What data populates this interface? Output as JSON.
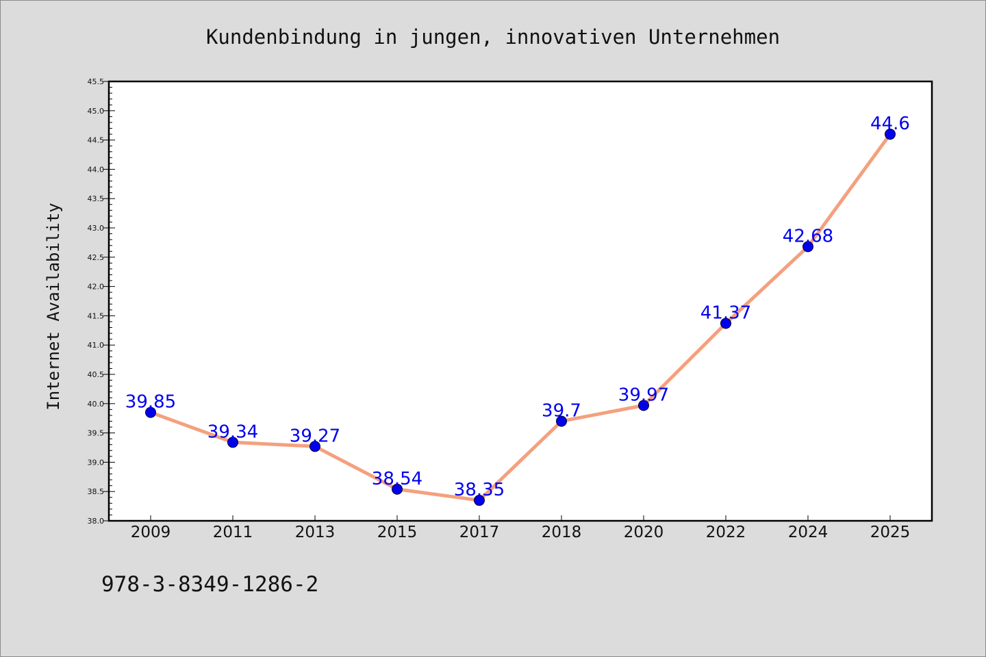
{
  "chart_data": {
    "type": "line",
    "title": "Kundenbindung in jungen, innovativen Unternehmen",
    "xlabel": "",
    "ylabel": "Internet Availability",
    "categories": [
      "2009",
      "2011",
      "2013",
      "2015",
      "2017",
      "2018",
      "2020",
      "2022",
      "2024",
      "2025"
    ],
    "series": [
      {
        "values": [
          39.85,
          39.34,
          39.27,
          38.54,
          38.35,
          39.7,
          39.97,
          41.37,
          42.68,
          44.6
        ]
      }
    ],
    "data_labels": [
      "39.85",
      "39.34",
      "39.27",
      "38.54",
      "38.35",
      "39.7",
      "39.97",
      "41.37",
      "42.68",
      "44.6"
    ],
    "ylim": [
      38.0,
      45.5
    ],
    "yticks": [
      "38.0",
      "38.5",
      "39.0",
      "39.5",
      "40.0",
      "40.5",
      "41.0",
      "41.5",
      "42.0",
      "42.5",
      "43.0",
      "43.5",
      "44.0",
      "44.5",
      "45.0",
      "45.5"
    ],
    "grid": false,
    "legend": "none",
    "line_color": "#f4a07e",
    "marker_color": "#0000ee",
    "label_color": "#0000ee"
  },
  "footer": {
    "isbn": "978-3-8349-1286-2"
  }
}
